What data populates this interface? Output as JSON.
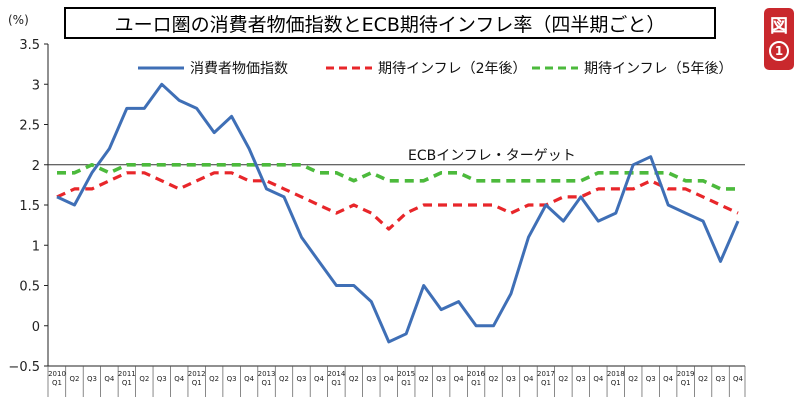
{
  "figure": {
    "title": "ユーロ圏の消費者物価指数とECB期待インフレ率（四半期ごと）",
    "badge_kanji": "図",
    "badge_number": "1"
  },
  "colors": {
    "cpi": "#3f6fb6",
    "exp2": "#e8262a",
    "exp5": "#4cba3c",
    "axis": "#222222",
    "target": "#333333"
  },
  "chart_data": {
    "type": "line",
    "title": "ユーロ圏の消費者物価指数とECB期待インフレ率（四半期ごと）",
    "ylabel": "(%)",
    "xlabel": "",
    "ylim": [
      -0.5,
      3.5
    ],
    "yticks": [
      "3.5",
      "3",
      "2.5",
      "2",
      "1.5",
      "1",
      "0.5",
      "0",
      "−0.5"
    ],
    "categories": [
      "2010 Q1",
      "Q2",
      "Q3",
      "Q4",
      "2011 Q1",
      "Q2",
      "Q3",
      "Q4",
      "2012 Q1",
      "Q2",
      "Q3",
      "Q4",
      "2013 Q1",
      "Q2",
      "Q3",
      "Q4",
      "2014 Q1",
      "Q2",
      "Q3",
      "Q4",
      "2015 Q1",
      "Q2",
      "Q3",
      "Q4",
      "2016 Q1",
      "Q2",
      "Q3",
      "Q4",
      "2017 Q1",
      "Q2",
      "Q3",
      "Q4",
      "2018 Q1",
      "Q2",
      "Q3",
      "Q4",
      "2019 Q1",
      "Q2",
      "Q3",
      "Q4"
    ],
    "series": [
      {
        "name": "消費者物価指数",
        "style": "solid",
        "values": [
          1.6,
          1.5,
          1.9,
          2.2,
          2.7,
          2.7,
          3.0,
          2.8,
          2.7,
          2.4,
          2.6,
          2.2,
          1.7,
          1.6,
          1.1,
          0.8,
          0.5,
          0.5,
          0.3,
          -0.2,
          -0.1,
          0.5,
          0.2,
          0.3,
          0.0,
          0.0,
          0.4,
          1.1,
          1.5,
          1.3,
          1.6,
          1.3,
          1.4,
          2.0,
          2.1,
          1.5,
          1.4,
          1.3,
          0.8,
          1.3
        ]
      },
      {
        "name": "期待インフレ（2年後）",
        "style": "dashed",
        "values": [
          1.6,
          1.7,
          1.7,
          1.8,
          1.9,
          1.9,
          1.8,
          1.7,
          1.8,
          1.9,
          1.9,
          1.8,
          1.8,
          1.7,
          1.6,
          1.5,
          1.4,
          1.5,
          1.4,
          1.2,
          1.4,
          1.5,
          1.5,
          1.5,
          1.5,
          1.5,
          1.4,
          1.5,
          1.5,
          1.6,
          1.6,
          1.7,
          1.7,
          1.7,
          1.8,
          1.7,
          1.7,
          1.6,
          1.5,
          1.4
        ]
      },
      {
        "name": "期待インフレ（5年後）",
        "style": "dashed",
        "values": [
          1.9,
          1.9,
          2.0,
          1.9,
          2.0,
          2.0,
          2.0,
          2.0,
          2.0,
          2.0,
          2.0,
          2.0,
          2.0,
          2.0,
          2.0,
          1.9,
          1.9,
          1.8,
          1.9,
          1.8,
          1.8,
          1.8,
          1.9,
          1.9,
          1.8,
          1.8,
          1.8,
          1.8,
          1.8,
          1.8,
          1.8,
          1.9,
          1.9,
          1.9,
          1.9,
          1.9,
          1.8,
          1.8,
          1.7,
          1.7
        ]
      }
    ],
    "reference_line": {
      "value": 2.0,
      "label": "ECBインフレ・ターゲット"
    },
    "legend_position": "top",
    "grid": false
  }
}
